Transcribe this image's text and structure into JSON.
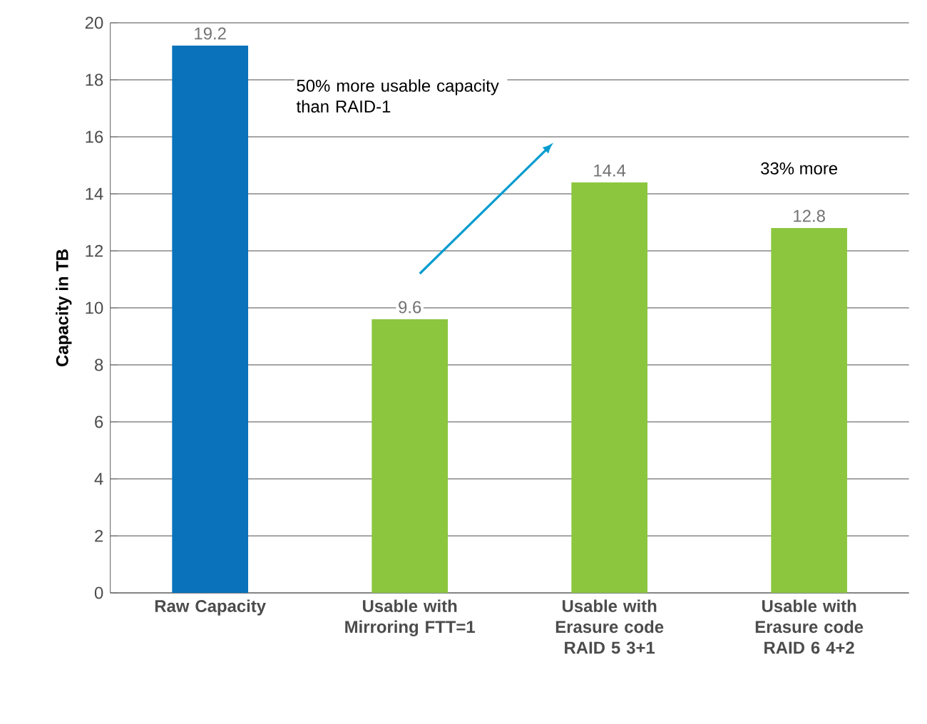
{
  "chart_data": {
    "type": "bar",
    "ylabel": "Capacity in TB",
    "categories": [
      "Raw Capacity",
      "Usable with Mirroring FTT=1",
      "Usable with Erasure code RAID 5 3+1",
      "Usable with Erasure code RAID 6 4+2"
    ],
    "values": [
      19.2,
      9.6,
      14.4,
      12.8
    ],
    "colors": [
      "#0a72ba",
      "#8cc63f",
      "#8cc63f",
      "#8cc63f"
    ],
    "ylim": [
      0,
      20
    ],
    "yticks": [
      0,
      2,
      4,
      6,
      8,
      10,
      12,
      14,
      16,
      18,
      20
    ],
    "grid": "y",
    "data_labels": true,
    "annotations": [
      "50% more usable capacity than RAID-1",
      "33% more"
    ]
  }
}
